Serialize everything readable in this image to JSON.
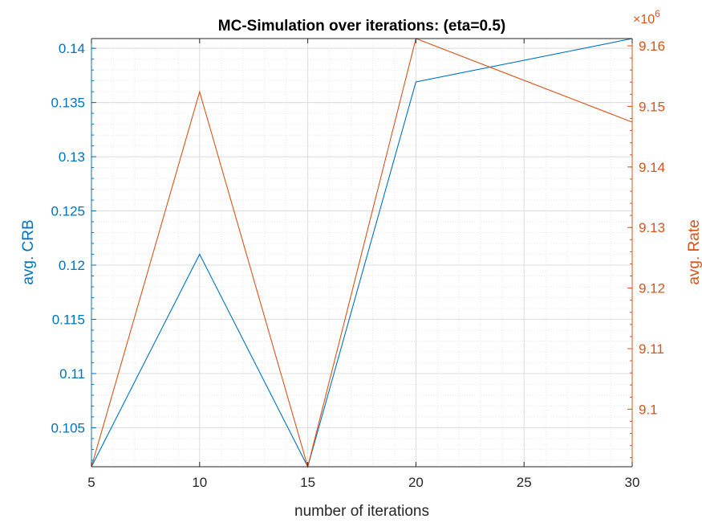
{
  "chart_data": {
    "type": "line",
    "title": "MC-Simulation over iterations: (eta=0.5)",
    "xlabel": "number of iterations",
    "ylabel_left": "avg. CRB",
    "ylabel_right": "avg. Rate",
    "right_axis_exponent_prefix": "×10",
    "right_axis_exponent_power": "6",
    "x": [
      5,
      10,
      15,
      20,
      30
    ],
    "x_ticks": [
      5,
      10,
      15,
      20,
      25,
      30
    ],
    "x_tick_labels": [
      "5",
      "10",
      "15",
      "20",
      "25",
      "30"
    ],
    "xlim": [
      5,
      30
    ],
    "ylim_left": [
      0.1014,
      0.1409
    ],
    "ylim_right": [
      9.0905,
      9.1612
    ],
    "y_ticks_left": [
      0.105,
      0.11,
      0.115,
      0.12,
      0.125,
      0.13,
      0.135,
      0.14
    ],
    "y_tick_labels_left": [
      "0.105",
      "0.11",
      "0.115",
      "0.12",
      "0.125",
      "0.13",
      "0.135",
      "0.14"
    ],
    "y_ticks_right": [
      9.1,
      9.11,
      9.12,
      9.13,
      9.14,
      9.15,
      9.16
    ],
    "y_tick_labels_right": [
      "9.1",
      "9.11",
      "9.12",
      "9.13",
      "9.14",
      "9.15",
      "9.16"
    ],
    "series": [
      {
        "axis": "left",
        "color": "#0072BD",
        "values": [
          0.1014,
          0.121,
          0.1014,
          0.1369,
          0.1409
        ]
      },
      {
        "axis": "right",
        "color": "#D95319",
        "values": [
          9.0905,
          9.1524,
          9.0905,
          9.1612,
          9.1474
        ]
      }
    ],
    "grid": true,
    "minor_grid": true,
    "box": true,
    "legend": "none"
  }
}
